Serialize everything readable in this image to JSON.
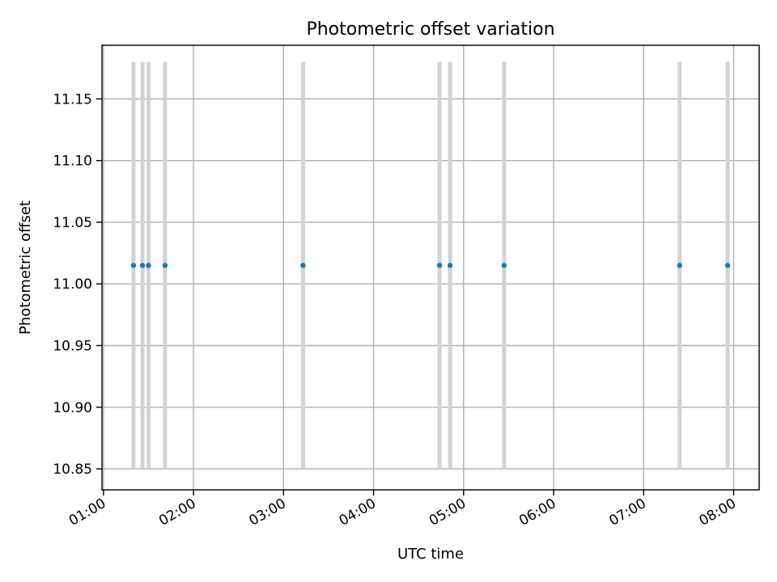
{
  "chart_data": {
    "type": "scatter",
    "title": "Photometric offset variation",
    "xlabel": "UTC time",
    "ylabel": "Photometric offset",
    "x_unit": "hours",
    "xlim": [
      "00:59:00",
      "08:17:00"
    ],
    "ylim": [
      10.833,
      11.1935
    ],
    "x_ticks": [
      "01:00",
      "02:00",
      "03:00",
      "04:00",
      "05:00",
      "06:00",
      "07:00",
      "08:00"
    ],
    "y_ticks": [
      "10.85",
      "10.90",
      "10.95",
      "11.00",
      "11.05",
      "11.10",
      "11.15"
    ],
    "grid": true,
    "x": [
      "01:20:00",
      "01:26:00",
      "01:30:00",
      "01:41:00",
      "03:13:00",
      "04:44:00",
      "04:51:00",
      "05:27:00",
      "07:24:00",
      "07:56:00"
    ],
    "y": [
      11.015,
      11.015,
      11.015,
      11.015,
      11.015,
      11.015,
      11.015,
      11.015,
      11.015,
      11.015
    ],
    "error_bars": {
      "low": [
        10.85,
        10.85,
        10.85,
        10.85,
        10.85,
        10.85,
        10.85,
        10.85,
        10.85,
        10.85
      ],
      "high": [
        11.18,
        11.18,
        11.18,
        11.18,
        11.18,
        11.18,
        11.18,
        11.18,
        11.18,
        11.18
      ]
    },
    "colors": {
      "points": "#1f77b4",
      "error_bars": "#d3d3d3",
      "grid": "#b0b0b0",
      "frame": "#000000"
    }
  }
}
